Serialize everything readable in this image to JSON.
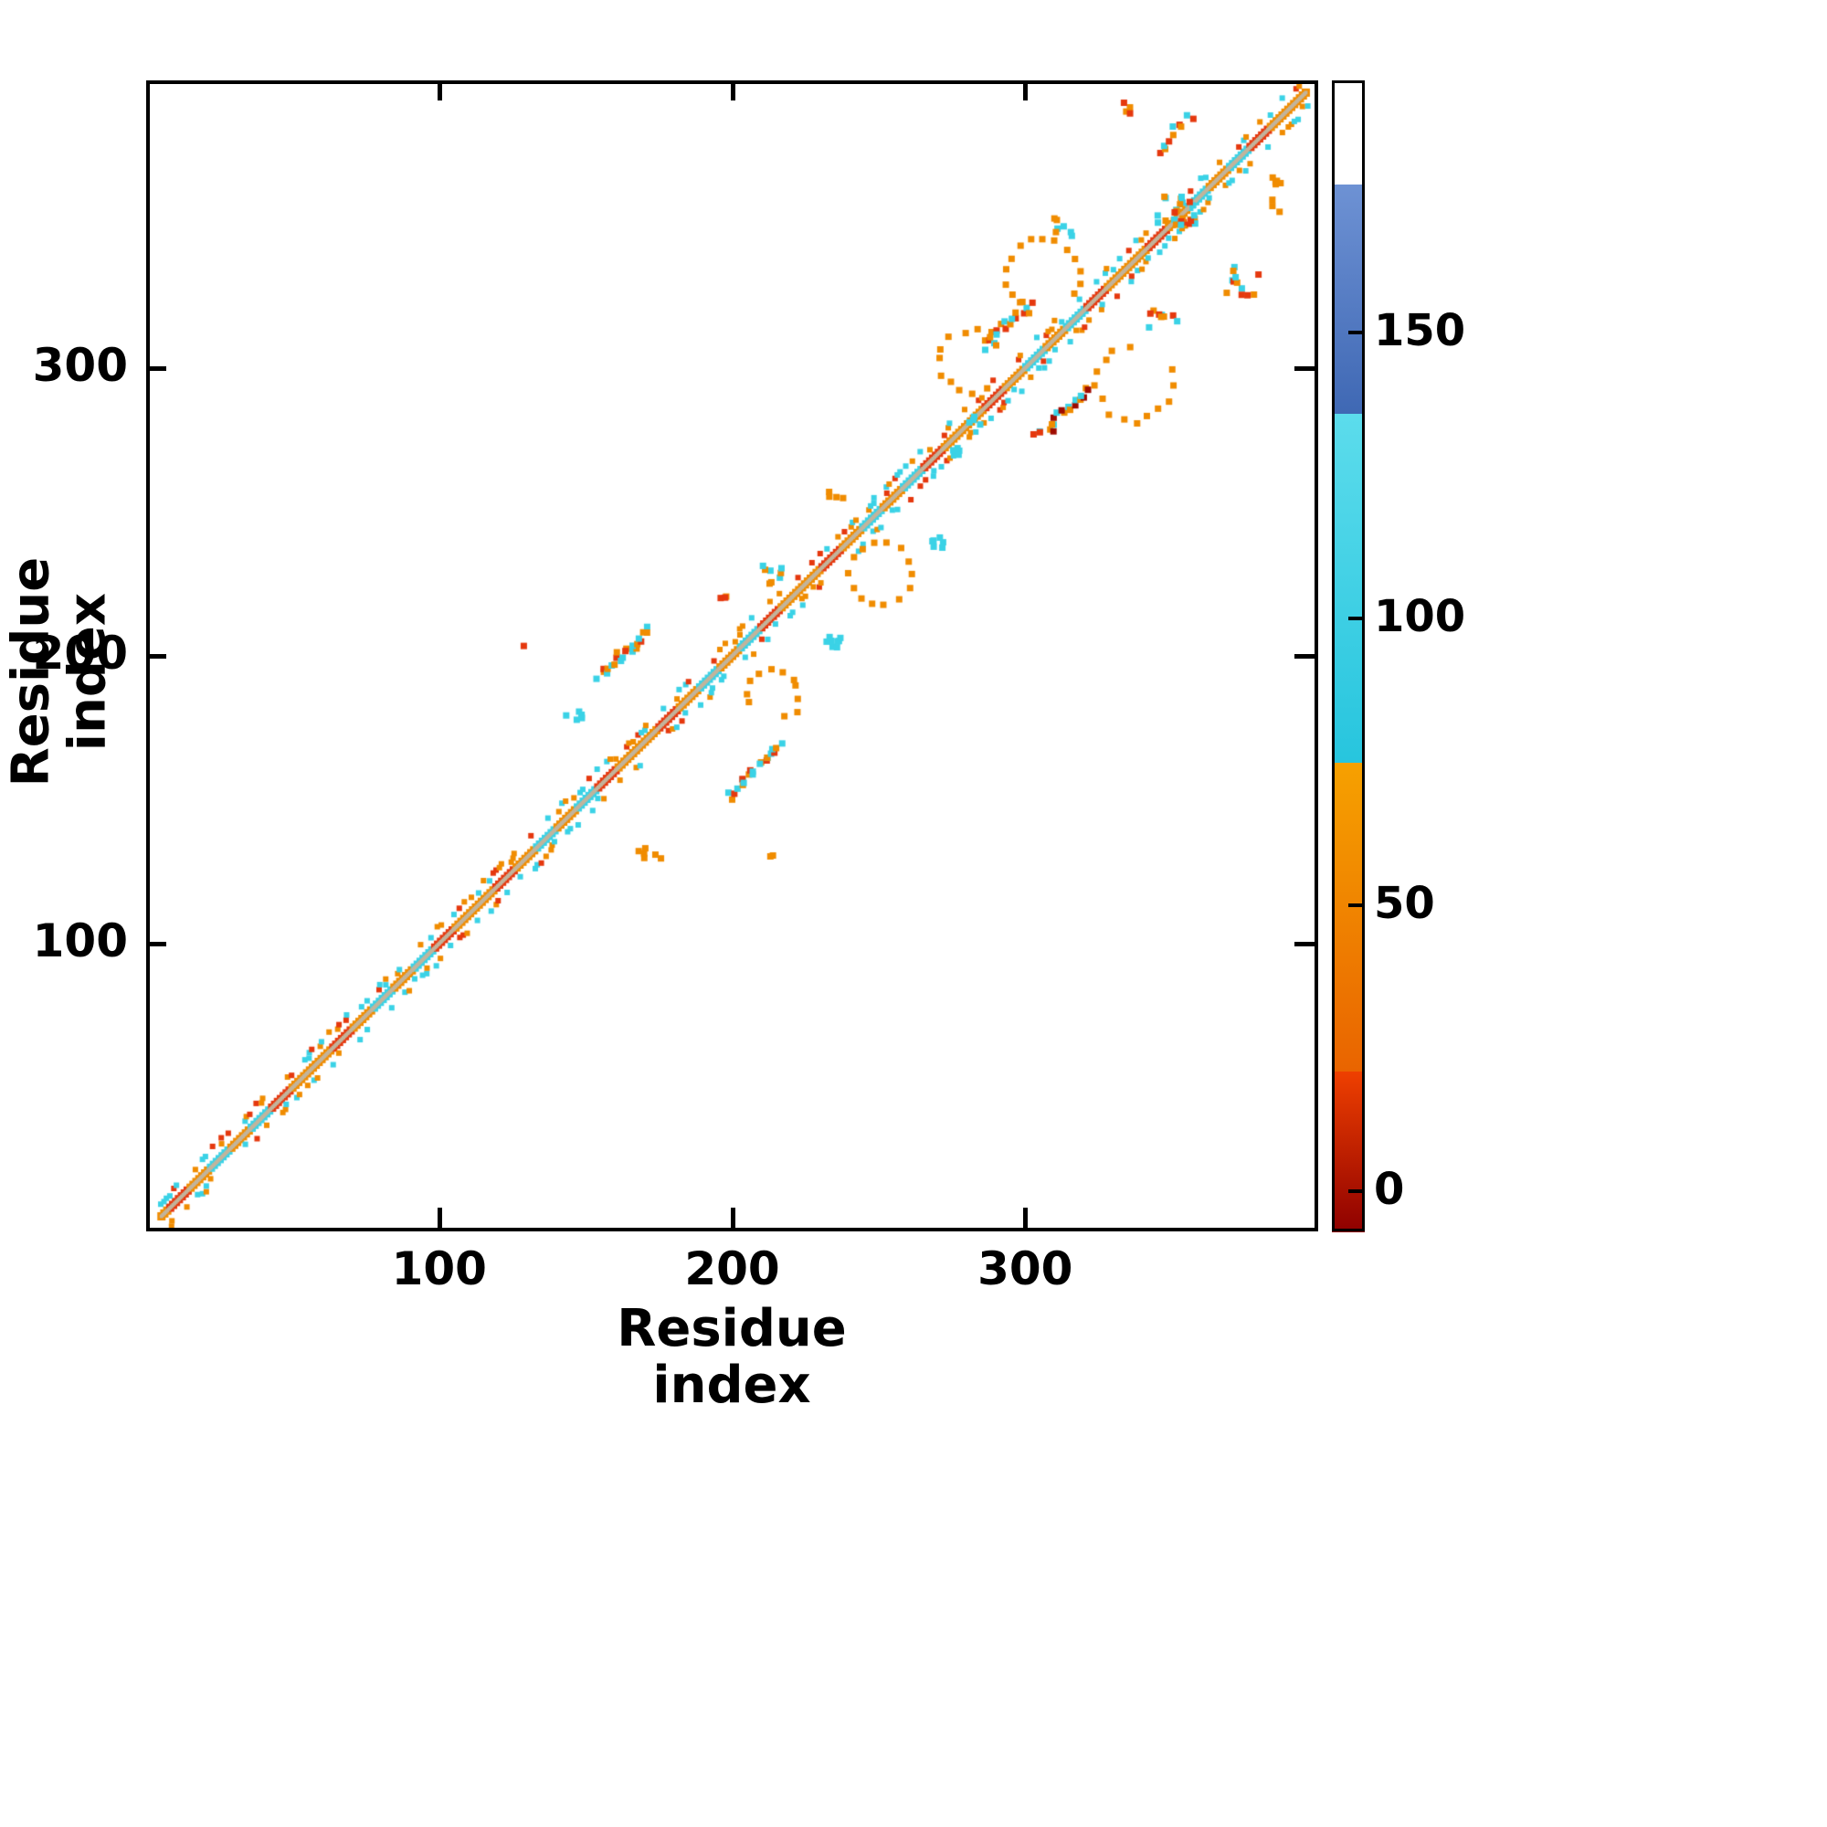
{
  "figure": {
    "xlabel": "Residue index",
    "ylabel": "Residue index"
  },
  "palette": {
    "red": "#e5380e",
    "darkred": "#9e0b00",
    "orange": "#f08c00",
    "cyan": "#3ad2e6",
    "blue": "#4f7dc4",
    "tan": "#c2b49c"
  },
  "chart_data": {
    "type": "scatter",
    "title": "",
    "xlabel": "Residue index",
    "ylabel": "Residue index",
    "xlim": [
      0,
      400
    ],
    "ylim": [
      0,
      400
    ],
    "x_ticks": [
      100,
      200,
      300
    ],
    "y_ticks": [
      100,
      200,
      300
    ],
    "grid": false,
    "legend": "none",
    "colorbar": {
      "ticks": [
        0,
        50,
        100,
        150
      ],
      "min": -7,
      "max": 194,
      "bands": [
        {
          "from": -7,
          "to": 21,
          "top_color": "#ef4000",
          "bottom_color": "#8e0000"
        },
        {
          "from": 21,
          "to": 75,
          "top_color": "#f6a100",
          "bottom_color": "#e96400"
        },
        {
          "from": 75,
          "to": 136,
          "top_color": "#5cdcec",
          "bottom_color": "#27c5de"
        },
        {
          "from": 136,
          "to": 176,
          "top_color": "#6e92d4",
          "bottom_color": "#3f68b4"
        },
        {
          "from": 176,
          "to": 194,
          "top_color": "#ffffff",
          "bottom_color": "#ffffff"
        }
      ]
    },
    "diagonal": {
      "from": 4,
      "to": 397,
      "seg": 7,
      "base": [
        "orange",
        "red",
        "orange",
        "cyan",
        "orange",
        "cyan",
        "red",
        "orange"
      ],
      "center_line": "tan",
      "flecks": [
        "cyan",
        "orange",
        "cyan",
        "red",
        "orange",
        "cyan"
      ],
      "fleck_density": 0.8
    },
    "clusters": [
      {
        "type": "blob",
        "cx": 146,
        "cy": 180,
        "w": 6,
        "h": 5,
        "n": 6,
        "colors": [
          "cyan"
        ]
      },
      {
        "type": "streak",
        "cx": 163,
        "cy": 201,
        "len": 17,
        "n": 22,
        "colors": [
          "cyan",
          "orange",
          "red",
          "cyan",
          "orange"
        ]
      },
      {
        "type": "streak",
        "cx": 208,
        "cy": 160,
        "len": 18,
        "n": 22,
        "colors": [
          "orange",
          "cyan",
          "red",
          "cyan"
        ]
      },
      {
        "type": "blob",
        "cx": 128,
        "cy": 204,
        "w": 2,
        "h": 2,
        "n": 1,
        "colors": [
          "red"
        ]
      },
      {
        "type": "blob",
        "cx": 172,
        "cy": 131,
        "w": 9,
        "h": 5,
        "n": 6,
        "colors": [
          "orange"
        ]
      },
      {
        "type": "arc",
        "cx": 214,
        "cy": 186,
        "r": 9,
        "a0": -60,
        "a1": 200,
        "n": 11,
        "colors": [
          "orange"
        ]
      },
      {
        "type": "blob",
        "cx": 235,
        "cy": 205,
        "w": 7,
        "h": 7,
        "n": 8,
        "colors": [
          "cyan"
        ]
      },
      {
        "type": "blob",
        "cx": 214,
        "cy": 228,
        "w": 8,
        "h": 7,
        "n": 8,
        "colors": [
          "cyan",
          "orange"
        ]
      },
      {
        "type": "arc",
        "cx": 251,
        "cy": 229,
        "r": 11,
        "a0": 0,
        "a1": 330,
        "n": 14,
        "colors": [
          "orange"
        ]
      },
      {
        "type": "blob",
        "cx": 270,
        "cy": 239,
        "w": 6,
        "h": 5,
        "n": 6,
        "colors": [
          "cyan"
        ]
      },
      {
        "type": "blob",
        "cx": 197,
        "cy": 221,
        "w": 4,
        "h": 4,
        "n": 3,
        "colors": [
          "red",
          "orange"
        ]
      },
      {
        "type": "streak",
        "cx": 294,
        "cy": 316,
        "len": 16,
        "n": 18,
        "colors": [
          "cyan",
          "orange",
          "red"
        ]
      },
      {
        "type": "streak",
        "cx": 315,
        "cy": 286,
        "len": 16,
        "n": 18,
        "colors": [
          "cyan",
          "orange",
          "darkred"
        ]
      },
      {
        "type": "arc",
        "cx": 282,
        "cy": 303,
        "r": 11,
        "a0": 30,
        "a1": 300,
        "n": 12,
        "colors": [
          "orange"
        ]
      },
      {
        "type": "arc",
        "cx": 307,
        "cy": 333,
        "r": 13,
        "a0": -30,
        "a1": 250,
        "n": 15,
        "colors": [
          "orange"
        ]
      },
      {
        "type": "arc",
        "cx": 338,
        "cy": 295,
        "r": 13,
        "a0": 100,
        "a1": 380,
        "n": 14,
        "colors": [
          "orange"
        ]
      },
      {
        "type": "blob",
        "cx": 348,
        "cy": 318,
        "w": 10,
        "h": 7,
        "n": 9,
        "colors": [
          "orange",
          "cyan",
          "red"
        ]
      },
      {
        "type": "blob",
        "cx": 353,
        "cy": 356,
        "w": 14,
        "h": 11,
        "n": 22,
        "colors": [
          "cyan",
          "orange",
          "red",
          "cyan"
        ]
      },
      {
        "type": "blob",
        "cx": 313,
        "cy": 350,
        "w": 8,
        "h": 7,
        "n": 7,
        "colors": [
          "cyan",
          "orange"
        ]
      },
      {
        "type": "blob",
        "cx": 375,
        "cy": 331,
        "w": 12,
        "h": 10,
        "n": 12,
        "colors": [
          "orange",
          "cyan",
          "red"
        ]
      },
      {
        "type": "blob",
        "cx": 387,
        "cy": 361,
        "w": 4,
        "h": 16,
        "n": 8,
        "colors": [
          "orange"
        ]
      },
      {
        "type": "streak",
        "cx": 352,
        "cy": 383,
        "len": 12,
        "n": 10,
        "colors": [
          "red",
          "orange",
          "cyan"
        ]
      },
      {
        "type": "blob",
        "cx": 337,
        "cy": 391,
        "w": 5,
        "h": 5,
        "n": 4,
        "colors": [
          "orange",
          "red"
        ]
      },
      {
        "type": "blob",
        "cx": 277,
        "cy": 271,
        "w": 5,
        "h": 4,
        "n": 4,
        "colors": [
          "cyan"
        ]
      },
      {
        "type": "blob",
        "cx": 236,
        "cy": 257,
        "w": 6,
        "h": 4,
        "n": 4,
        "colors": [
          "orange"
        ]
      },
      {
        "type": "blob",
        "cx": 213,
        "cy": 131,
        "w": 3,
        "h": 3,
        "n": 2,
        "colors": [
          "orange"
        ]
      },
      {
        "type": "blob",
        "cx": 305,
        "cy": 278,
        "w": 3,
        "h": 3,
        "n": 2,
        "colors": [
          "red"
        ]
      },
      {
        "type": "blob",
        "cx": 284,
        "cy": 282,
        "w": 6,
        "h": 4,
        "n": 4,
        "colors": [
          "cyan"
        ]
      }
    ]
  }
}
